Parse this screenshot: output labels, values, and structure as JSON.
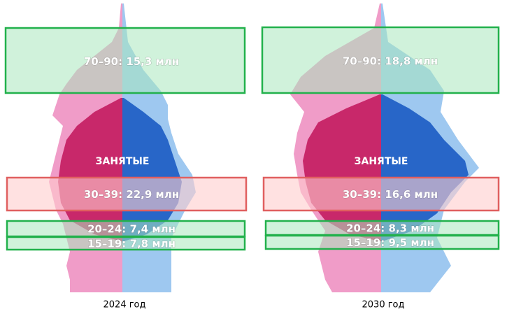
{
  "panels": [
    {
      "employed_label": "ЗАНЯТЫЕ",
      "year_label": "2024 год",
      "boxes": [
        {
          "label": "70–90: 15,3 млн"
        },
        {
          "label": "30–39: 22,9 млн"
        },
        {
          "label": "20–24: 7,4 млн"
        },
        {
          "label": "15–19: 7,8 млн"
        }
      ]
    },
    {
      "employed_label": "ЗАНЯТЫЕ",
      "year_label": "2030 год",
      "boxes": [
        {
          "label": "70–90: 18,8 млн"
        },
        {
          "label": "30–39: 16,6 млн"
        },
        {
          "label": "20–24: 8,3 млн"
        },
        {
          "label": "15–19: 9,5 млн"
        }
      ]
    }
  ]
}
